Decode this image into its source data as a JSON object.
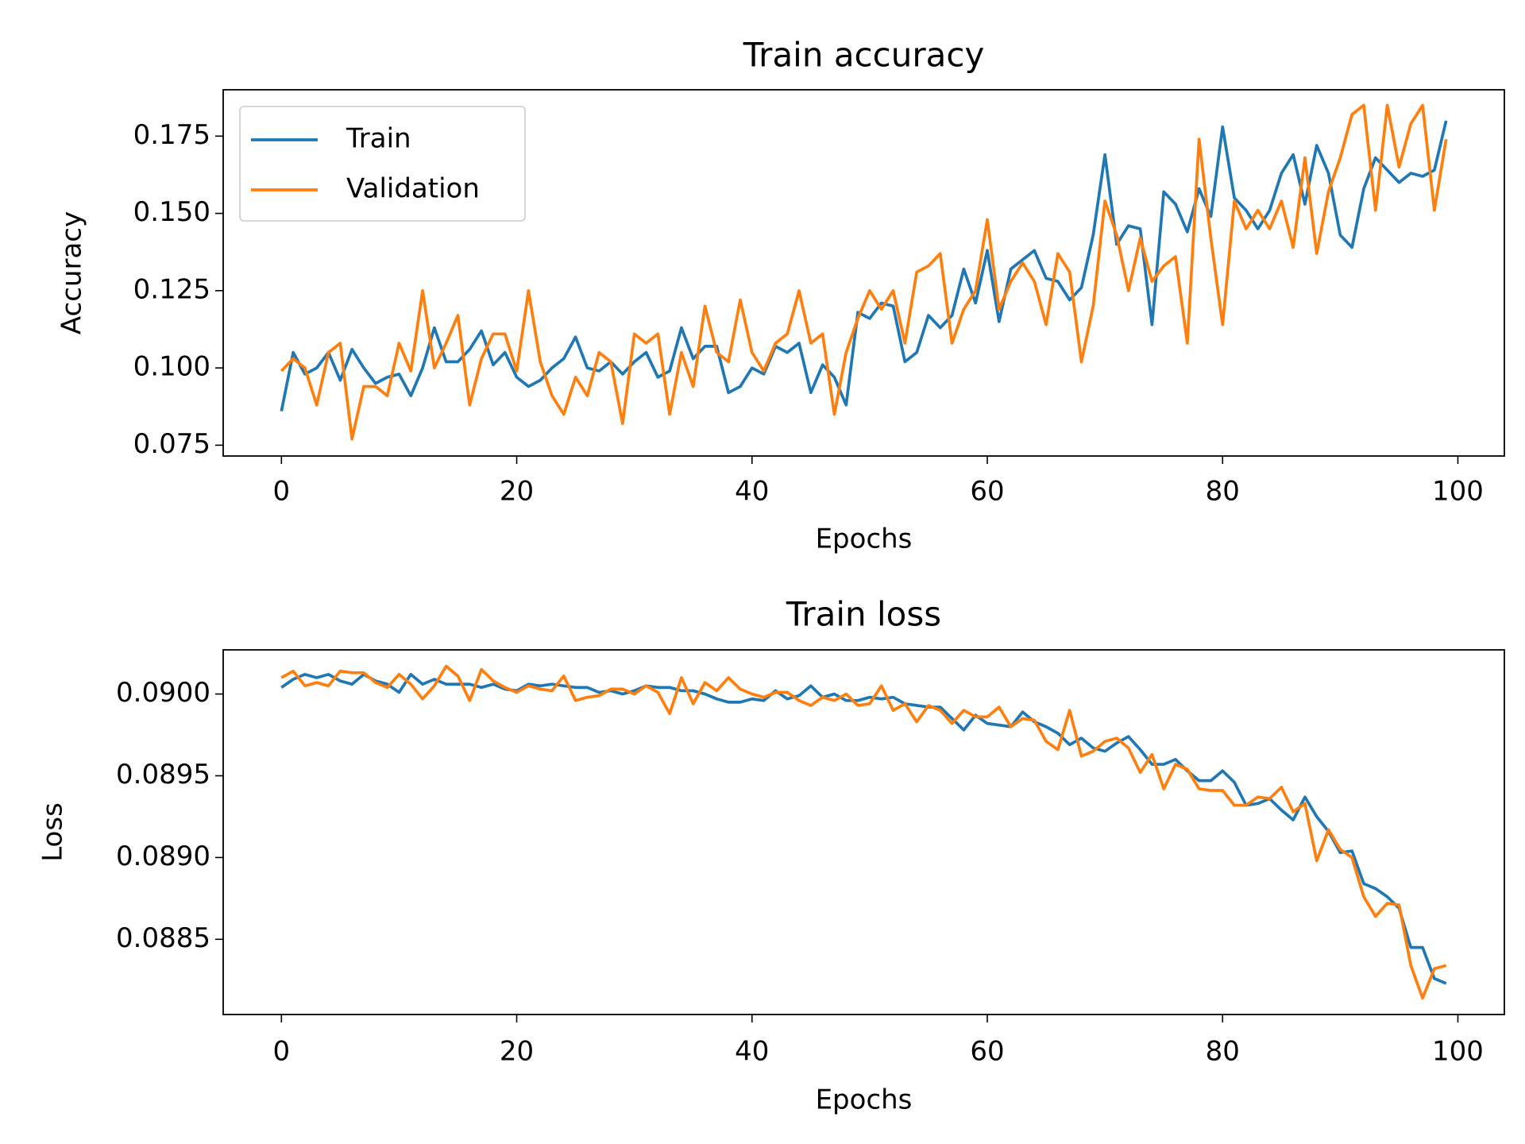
{
  "chart_data": [
    {
      "type": "line",
      "title": "Train accuracy",
      "xlabel": "Epochs",
      "ylabel": "Accuracy",
      "x": [
        0,
        1,
        2,
        3,
        4,
        5,
        6,
        7,
        8,
        9,
        10,
        11,
        12,
        13,
        14,
        15,
        16,
        17,
        18,
        19,
        20,
        21,
        22,
        23,
        24,
        25,
        26,
        27,
        28,
        29,
        30,
        31,
        32,
        33,
        34,
        35,
        36,
        37,
        38,
        39,
        40,
        41,
        42,
        43,
        44,
        45,
        46,
        47,
        48,
        49,
        50,
        51,
        52,
        53,
        54,
        55,
        56,
        57,
        58,
        59,
        60,
        61,
        62,
        63,
        64,
        65,
        66,
        67,
        68,
        69,
        70,
        71,
        72,
        73,
        74,
        75,
        76,
        77,
        78,
        79,
        80,
        81,
        82,
        83,
        84,
        85,
        86,
        87,
        88,
        89,
        90,
        91,
        92,
        93,
        94,
        95,
        96,
        97,
        98,
        99
      ],
      "series": [
        {
          "name": "Train",
          "color": "#1f77b4",
          "values": [
            0.086,
            0.105,
            0.098,
            0.1,
            0.105,
            0.096,
            0.106,
            0.1,
            0.095,
            0.097,
            0.098,
            0.091,
            0.1,
            0.113,
            0.102,
            0.102,
            0.106,
            0.112,
            0.101,
            0.105,
            0.097,
            0.094,
            0.096,
            0.1,
            0.103,
            0.11,
            0.1,
            0.099,
            0.102,
            0.098,
            0.102,
            0.105,
            0.097,
            0.099,
            0.113,
            0.103,
            0.107,
            0.107,
            0.092,
            0.094,
            0.1,
            0.098,
            0.107,
            0.105,
            0.108,
            0.092,
            0.101,
            0.097,
            0.088,
            0.118,
            0.116,
            0.121,
            0.12,
            0.102,
            0.105,
            0.117,
            0.113,
            0.117,
            0.132,
            0.121,
            0.138,
            0.115,
            0.132,
            0.135,
            0.138,
            0.129,
            0.128,
            0.122,
            0.126,
            0.143,
            0.169,
            0.14,
            0.146,
            0.145,
            0.114,
            0.157,
            0.153,
            0.144,
            0.158,
            0.149,
            0.178,
            0.155,
            0.151,
            0.145,
            0.151,
            0.163,
            0.169,
            0.153,
            0.172,
            0.163,
            0.143,
            0.139,
            0.158,
            0.168,
            0.164,
            0.16,
            0.163,
            0.162,
            0.164,
            0.18
          ]
        },
        {
          "name": "Validation",
          "color": "#ff7f0e",
          "values": [
            0.099,
            0.103,
            0.1,
            0.088,
            0.105,
            0.108,
            0.077,
            0.094,
            0.094,
            0.091,
            0.108,
            0.099,
            0.125,
            0.1,
            0.108,
            0.117,
            0.088,
            0.103,
            0.111,
            0.111,
            0.099,
            0.125,
            0.102,
            0.091,
            0.085,
            0.097,
            0.091,
            0.105,
            0.102,
            0.082,
            0.111,
            0.108,
            0.111,
            0.085,
            0.105,
            0.094,
            0.12,
            0.105,
            0.102,
            0.122,
            0.105,
            0.099,
            0.108,
            0.111,
            0.125,
            0.108,
            0.111,
            0.085,
            0.105,
            0.116,
            0.125,
            0.119,
            0.125,
            0.108,
            0.131,
            0.133,
            0.137,
            0.108,
            0.119,
            0.125,
            0.148,
            0.119,
            0.128,
            0.134,
            0.128,
            0.114,
            0.137,
            0.131,
            0.102,
            0.12,
            0.154,
            0.143,
            0.125,
            0.142,
            0.128,
            0.133,
            0.136,
            0.108,
            0.174,
            0.142,
            0.114,
            0.154,
            0.145,
            0.151,
            0.145,
            0.154,
            0.139,
            0.168,
            0.137,
            0.157,
            0.168,
            0.182,
            0.185,
            0.151,
            0.185,
            0.165,
            0.179,
            0.185,
            0.151,
            0.174
          ]
        }
      ],
      "xlim": [
        -4.95,
        103.95
      ],
      "xticks": [
        0,
        20,
        40,
        60,
        80,
        100
      ],
      "ylim": [
        0.0715,
        0.19
      ],
      "yticks": [
        0.075,
        {
          "value": 0.1,
          "label": "0.100"
        },
        0.125,
        {
          "value": 0.15,
          "label": "0.150"
        },
        0.175
      ],
      "legend": "upper left"
    },
    {
      "type": "line",
      "title": "Train loss",
      "xlabel": "Epochs",
      "ylabel": "Loss",
      "x": [
        0,
        1,
        2,
        3,
        4,
        5,
        6,
        7,
        8,
        9,
        10,
        11,
        12,
        13,
        14,
        15,
        16,
        17,
        18,
        19,
        20,
        21,
        22,
        23,
        24,
        25,
        26,
        27,
        28,
        29,
        30,
        31,
        32,
        33,
        34,
        35,
        36,
        37,
        38,
        39,
        40,
        41,
        42,
        43,
        44,
        45,
        46,
        47,
        48,
        49,
        50,
        51,
        52,
        53,
        54,
        55,
        56,
        57,
        58,
        59,
        60,
        61,
        62,
        63,
        64,
        65,
        66,
        67,
        68,
        69,
        70,
        71,
        72,
        73,
        74,
        75,
        76,
        77,
        78,
        79,
        80,
        81,
        82,
        83,
        84,
        85,
        86,
        87,
        88,
        89,
        90,
        91,
        92,
        93,
        94,
        95,
        96,
        97,
        98,
        99
      ],
      "series": [
        {
          "color": "#1f77b4",
          "values": [
            0.09004,
            0.09009,
            0.09012,
            0.0901,
            0.09012,
            0.09008,
            0.09006,
            0.09012,
            0.09008,
            0.09006,
            0.09001,
            0.09012,
            0.09006,
            0.09009,
            0.09006,
            0.09006,
            0.09006,
            0.09004,
            0.09006,
            0.09003,
            0.09002,
            0.09006,
            0.09005,
            0.09006,
            0.09005,
            0.09004,
            0.09004,
            0.09001,
            0.09002,
            0.09,
            0.09002,
            0.09005,
            0.09004,
            0.09004,
            0.09002,
            0.09002,
            0.09,
            0.08997,
            0.08995,
            0.08995,
            0.08997,
            0.08996,
            0.09002,
            0.08997,
            0.08999,
            0.09005,
            0.08998,
            0.09,
            0.08996,
            0.08996,
            0.08998,
            0.08997,
            0.08998,
            0.08994,
            0.08993,
            0.08992,
            0.08992,
            0.08985,
            0.08978,
            0.08987,
            0.08982,
            0.08981,
            0.0898,
            0.08989,
            0.08983,
            0.0898,
            0.08976,
            0.08969,
            0.08973,
            0.08967,
            0.08965,
            0.0897,
            0.08974,
            0.08966,
            0.08957,
            0.08957,
            0.0896,
            0.08953,
            0.08947,
            0.08947,
            0.08953,
            0.08946,
            0.08932,
            0.08933,
            0.08936,
            0.08929,
            0.08923,
            0.08937,
            0.08925,
            0.08916,
            0.08903,
            0.08904,
            0.08884,
            0.08881,
            0.08876,
            0.08869,
            0.08845,
            0.08845,
            0.08826,
            0.08823
          ]
        },
        {
          "color": "#ff7f0e",
          "values": [
            0.0901,
            0.09014,
            0.09005,
            0.09007,
            0.09005,
            0.09014,
            0.09013,
            0.09013,
            0.09007,
            0.09004,
            0.09012,
            0.09006,
            0.08997,
            0.09005,
            0.09017,
            0.09011,
            0.08996,
            0.09015,
            0.09008,
            0.09004,
            0.09001,
            0.09005,
            0.09003,
            0.09002,
            0.09011,
            0.08996,
            0.08998,
            0.08999,
            0.09003,
            0.09003,
            0.09,
            0.09005,
            0.09001,
            0.08988,
            0.0901,
            0.08994,
            0.09007,
            0.09002,
            0.0901,
            0.09003,
            0.09,
            0.08998,
            0.09001,
            0.09001,
            0.08996,
            0.08993,
            0.08998,
            0.08996,
            0.09,
            0.08993,
            0.08994,
            0.09005,
            0.0899,
            0.08994,
            0.08983,
            0.08993,
            0.0899,
            0.08982,
            0.0899,
            0.08986,
            0.08986,
            0.08992,
            0.0898,
            0.08985,
            0.08984,
            0.08971,
            0.08966,
            0.0899,
            0.08962,
            0.08965,
            0.08971,
            0.08973,
            0.08967,
            0.08952,
            0.08963,
            0.08942,
            0.08957,
            0.08954,
            0.08942,
            0.08941,
            0.08941,
            0.08932,
            0.08932,
            0.08937,
            0.08936,
            0.08943,
            0.08928,
            0.08933,
            0.08898,
            0.08917,
            0.08905,
            0.089,
            0.08876,
            0.08864,
            0.08872,
            0.08871,
            0.08834,
            0.08814,
            0.08832,
            0.08834
          ]
        }
      ],
      "xlim": [
        -4.95,
        103.95
      ],
      "xticks": [
        0,
        20,
        40,
        60,
        80,
        100
      ],
      "ylim": [
        0.08804,
        0.09027
      ],
      "yticks": [
        0.0885,
        {
          "value": 0.089,
          "label": "0.0890"
        },
        0.0895,
        {
          "value": 0.09,
          "label": "0.0900"
        }
      ]
    }
  ]
}
